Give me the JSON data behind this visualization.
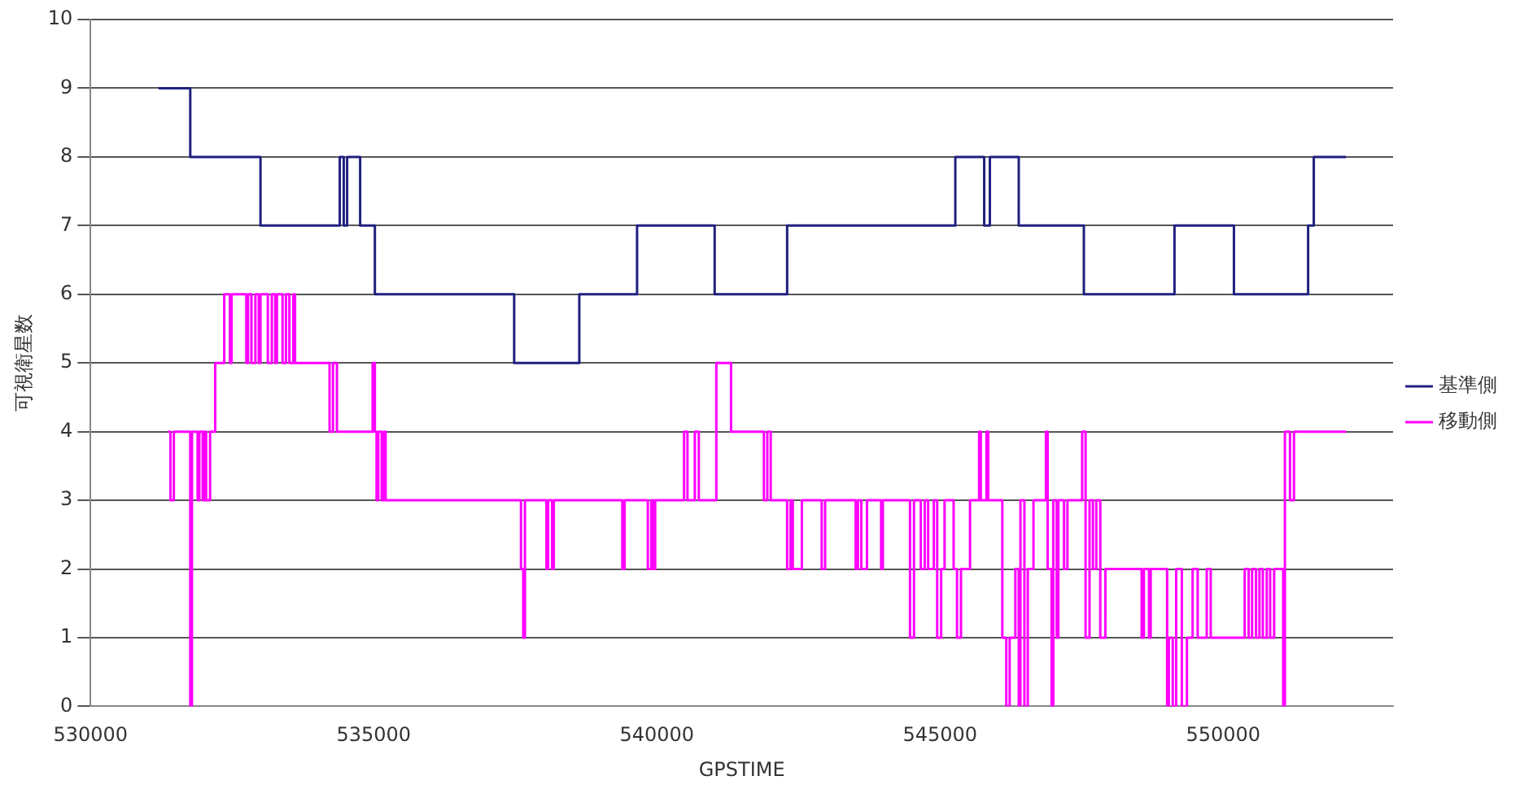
{
  "chart_data": {
    "type": "step",
    "xlabel": "GPSTIME",
    "ylabel": "可視衛星数",
    "xlim": [
      530000,
      553000
    ],
    "xticks": [
      530000,
      535000,
      540000,
      545000,
      550000
    ],
    "ylim": [
      0,
      10
    ],
    "yticks": [
      0,
      1,
      2,
      3,
      4,
      5,
      6,
      7,
      8,
      9,
      10
    ],
    "grid": "y",
    "legend": "right",
    "marker": "none",
    "line_style": "solid",
    "series": [
      {
        "name": "基準側",
        "color": "#202080",
        "x": [
          531200,
          531760,
          533000,
          534400,
          534470,
          534530,
          534760,
          535020,
          537480,
          538630,
          539650,
          541020,
          542300,
          545270,
          545780,
          545880,
          546390,
          547540,
          549140,
          550190,
          551500,
          551600,
          552170
        ],
        "values": [
          9,
          8,
          7,
          8,
          7,
          8,
          7,
          6,
          5,
          6,
          7,
          6,
          7,
          8,
          7,
          8,
          7,
          6,
          7,
          6,
          7,
          8,
          8
        ]
      },
      {
        "name": "移動側",
        "color": "#ff00ff",
        "x": [
          531370,
          531410,
          531470,
          531760,
          531790,
          531890,
          531920,
          531980,
          532010,
          532040,
          532110,
          532200,
          532360,
          532460,
          532490,
          532750,
          532780,
          532840,
          532910,
          532970,
          533000,
          533130,
          533200,
          533260,
          533290,
          533390,
          533450,
          533510,
          533580,
          533610,
          534220,
          534280,
          534350,
          534980,
          535020,
          535050,
          535080,
          535140,
          535180,
          535210,
          537600,
          537640,
          537670,
          538050,
          538080,
          538150,
          538180,
          539390,
          539430,
          539840,
          539900,
          539940,
          539970,
          540480,
          540540,
          540670,
          540740,
          541050,
          541310,
          541890,
          541950,
          542010,
          542300,
          542360,
          542400,
          542560,
          542910,
          542970,
          543510,
          543550,
          543610,
          543710,
          543960,
          543990,
          544470,
          544540,
          544660,
          544730,
          544790,
          544890,
          544950,
          545020,
          545080,
          545240,
          545300,
          545370,
          545530,
          545690,
          545720,
          545820,
          545850,
          546100,
          546170,
          546230,
          546330,
          546390,
          546420,
          546490,
          546550,
          546650,
          546870,
          546900,
          546970,
          547000,
          547060,
          547090,
          547190,
          547250,
          547510,
          547570,
          547640,
          547700,
          547760,
          547830,
          547920,
          548560,
          548600,
          548690,
          548720,
          549010,
          549040,
          549110,
          549170,
          549270,
          549360,
          549460,
          549550,
          549710,
          549780,
          550320,
          550380,
          550450,
          550510,
          550580,
          550640,
          550700,
          550770,
          550830,
          550900,
          551060,
          551090,
          551180,
          551250,
          552170
        ],
        "values": [
          4,
          3,
          4,
          0,
          4,
          3,
          4,
          3,
          4,
          3,
          4,
          5,
          6,
          5,
          6,
          5,
          6,
          5,
          6,
          5,
          6,
          5,
          6,
          5,
          6,
          5,
          6,
          5,
          6,
          5,
          4,
          5,
          4,
          5,
          4,
          3,
          4,
          3,
          4,
          3,
          2,
          1,
          3,
          2,
          3,
          2,
          3,
          2,
          3,
          2,
          3,
          2,
          3,
          4,
          3,
          4,
          3,
          5,
          4,
          3,
          4,
          3,
          2,
          3,
          2,
          3,
          2,
          3,
          2,
          3,
          2,
          3,
          2,
          3,
          1,
          3,
          2,
          3,
          2,
          3,
          1,
          2,
          3,
          2,
          1,
          2,
          3,
          4,
          3,
          4,
          3,
          1,
          0,
          1,
          2,
          0,
          3,
          0,
          2,
          3,
          4,
          2,
          0,
          3,
          1,
          3,
          2,
          3,
          4,
          1,
          3,
          2,
          3,
          1,
          2,
          1,
          2,
          1,
          2,
          0,
          1,
          0,
          2,
          0,
          1,
          2,
          1,
          2,
          1,
          1,
          2,
          1,
          2,
          1,
          2,
          1,
          2,
          1,
          2,
          0,
          4,
          3,
          4,
          4
        ]
      }
    ]
  }
}
